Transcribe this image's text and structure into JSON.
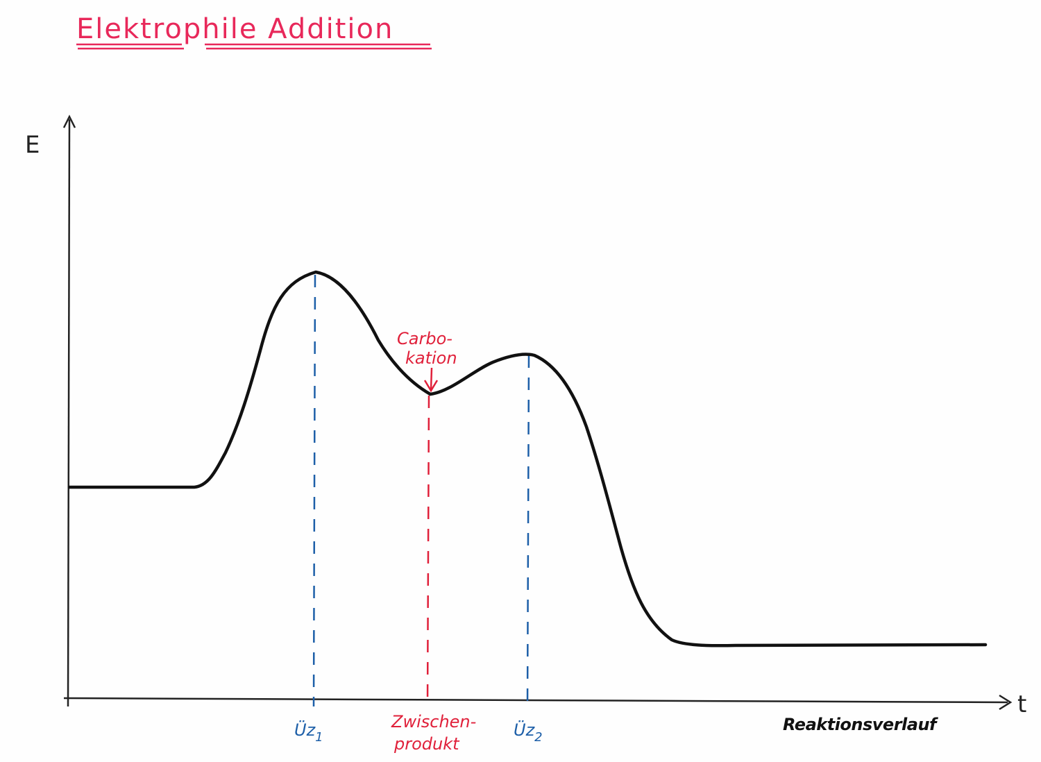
{
  "title": "Elektrophile Addition",
  "axes": {
    "y_label": "E",
    "x_label": "t",
    "x_caption": "Reaktionsverlauf"
  },
  "markers": [
    {
      "id": "uez1",
      "main": "Üz",
      "sub": "1",
      "color": "#1d5fa8"
    },
    {
      "id": "zwischenprodukt",
      "line1": "Zwischen-",
      "line2": "produkt",
      "color": "#e0203a"
    },
    {
      "id": "uez2",
      "main": "Üz",
      "sub": "2",
      "color": "#1d5fa8"
    }
  ],
  "annotation": {
    "line1": "Carbo-",
    "line2": "kation",
    "color": "#e0203a"
  },
  "colors": {
    "title": "#e8285a",
    "curve": "#111111",
    "axes": "#222222",
    "transition_state": "#1d5fa8",
    "intermediate": "#e0203a"
  }
}
